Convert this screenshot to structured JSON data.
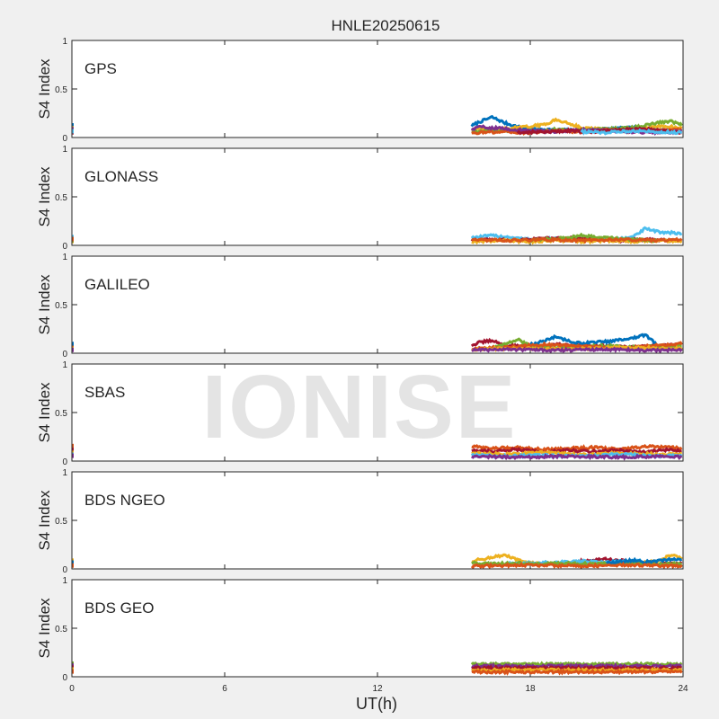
{
  "watermark": "IONISE",
  "chart_data": {
    "type": "scatter",
    "title": "HNLE20250615",
    "xlabel": "UT(h)",
    "ylabel": "S4 Index",
    "xlim": [
      0,
      24
    ],
    "ylim": [
      0,
      1
    ],
    "xticks": [
      "0",
      "6",
      "12",
      "18",
      "24"
    ],
    "yticks": [
      "0",
      "0.5",
      "1"
    ],
    "grid": false,
    "colors": [
      "#0072bd",
      "#d95319",
      "#edb120",
      "#7e2f8e",
      "#77ac30",
      "#4dbeee",
      "#a2142f"
    ],
    "panels": [
      {
        "name": "GPS",
        "data_start_ut": 15.7,
        "data_end_ut": 24,
        "series": [
          {
            "color_index": 0,
            "x": [
              15.7,
              16.0,
              16.5,
              17.0,
              17.5,
              18.0,
              19.0,
              20.0,
              21.0,
              22.0,
              23.0,
              24.0
            ],
            "y": [
              0.12,
              0.16,
              0.21,
              0.15,
              0.11,
              0.09,
              0.08,
              0.07,
              0.09,
              0.1,
              0.08,
              0.07
            ]
          },
          {
            "color_index": 2,
            "x": [
              15.7,
              16.5,
              17.5,
              18.5,
              19.0,
              19.5,
              20.0,
              21.0,
              22.0,
              23.0,
              24.0
            ],
            "y": [
              0.09,
              0.08,
              0.1,
              0.13,
              0.18,
              0.15,
              0.1,
              0.08,
              0.07,
              0.12,
              0.1
            ]
          },
          {
            "color_index": 4,
            "x": [
              15.7,
              17.0,
              18.0,
              19.0,
              20.0,
              21.0,
              22.0,
              23.0,
              23.5,
              24.0
            ],
            "y": [
              0.06,
              0.07,
              0.06,
              0.08,
              0.07,
              0.09,
              0.1,
              0.15,
              0.17,
              0.13
            ]
          },
          {
            "color_index": 1,
            "x": [
              15.7,
              17.0,
              18.0,
              19.0,
              20.0,
              21.0,
              22.0,
              23.0,
              24.0
            ],
            "y": [
              0.05,
              0.06,
              0.05,
              0.07,
              0.06,
              0.08,
              0.06,
              0.07,
              0.08
            ]
          },
          {
            "color_index": 3,
            "x": [
              15.7,
              16.0,
              17.0,
              18.0,
              19.0,
              20.0,
              21.0,
              22.0,
              23.0,
              24.0
            ],
            "y": [
              0.08,
              0.11,
              0.09,
              0.07,
              0.06,
              0.08,
              0.07,
              0.06,
              0.05,
              0.06
            ]
          },
          {
            "color_index": 6,
            "x": [
              17.5,
              18.5,
              19.5,
              20.5,
              21.5,
              22.5,
              23.5,
              24.0
            ],
            "y": [
              0.05,
              0.06,
              0.07,
              0.06,
              0.08,
              0.09,
              0.06,
              0.05
            ]
          },
          {
            "color_index": 5,
            "x": [
              20.0,
              21.0,
              22.0,
              23.0,
              24.0
            ],
            "y": [
              0.06,
              0.05,
              0.07,
              0.06,
              0.05
            ]
          }
        ]
      },
      {
        "name": "GLONASS",
        "data_start_ut": 15.7,
        "data_end_ut": 24,
        "series": [
          {
            "color_index": 5,
            "x": [
              15.7,
              16.5,
              17.0,
              18.0,
              19.0,
              20.0,
              21.0,
              22.0,
              22.5,
              23.0,
              24.0
            ],
            "y": [
              0.08,
              0.1,
              0.09,
              0.06,
              0.07,
              0.05,
              0.06,
              0.08,
              0.17,
              0.14,
              0.12
            ]
          },
          {
            "color_index": 6,
            "x": [
              15.7,
              16.5,
              17.5,
              18.5,
              19.5,
              20.5,
              21.5,
              22.5,
              23.5,
              24.0
            ],
            "y": [
              0.05,
              0.06,
              0.05,
              0.07,
              0.08,
              0.06,
              0.05,
              0.06,
              0.05,
              0.05
            ]
          },
          {
            "color_index": 2,
            "x": [
              15.7,
              17.0,
              18.0,
              19.0,
              20.0,
              21.0,
              22.0,
              23.0,
              24.0
            ],
            "y": [
              0.04,
              0.05,
              0.04,
              0.05,
              0.04,
              0.05,
              0.04,
              0.05,
              0.04
            ]
          },
          {
            "color_index": 4,
            "x": [
              18.0,
              19.0,
              20.0,
              21.0,
              22.0,
              23.0
            ],
            "y": [
              0.05,
              0.07,
              0.1,
              0.08,
              0.06,
              0.05
            ]
          },
          {
            "color_index": 1,
            "x": [
              15.7,
              17.0,
              18.5,
              20.0,
              21.5,
              23.0,
              24.0
            ],
            "y": [
              0.06,
              0.05,
              0.06,
              0.05,
              0.06,
              0.05,
              0.06
            ]
          }
        ]
      },
      {
        "name": "GALILEO",
        "data_start_ut": 15.7,
        "data_end_ut": 24,
        "series": [
          {
            "color_index": 6,
            "x": [
              15.7,
              16.0,
              16.5,
              17.0,
              18.0,
              19.0,
              20.0,
              21.0,
              22.0,
              23.0,
              24.0
            ],
            "y": [
              0.08,
              0.11,
              0.13,
              0.08,
              0.07,
              0.09,
              0.08,
              0.07,
              0.06,
              0.08,
              0.09
            ]
          },
          {
            "color_index": 4,
            "x": [
              16.5,
              17.0,
              17.5,
              18.0,
              19.0,
              20.0,
              21.0,
              22.0,
              23.0,
              24.0
            ],
            "y": [
              0.06,
              0.09,
              0.14,
              0.08,
              0.06,
              0.07,
              0.08,
              0.06,
              0.07,
              0.08
            ]
          },
          {
            "color_index": 0,
            "x": [
              18.0,
              18.5,
              19.0,
              19.5,
              20.0,
              21.0,
              22.0,
              22.5,
              23.0
            ],
            "y": [
              0.09,
              0.12,
              0.17,
              0.13,
              0.1,
              0.12,
              0.15,
              0.19,
              0.08
            ]
          },
          {
            "color_index": 1,
            "x": [
              15.7,
              17.0,
              18.5,
              20.0,
              21.5,
              23.0,
              24.0
            ],
            "y": [
              0.05,
              0.06,
              0.09,
              0.07,
              0.05,
              0.08,
              0.1
            ]
          },
          {
            "color_index": 2,
            "x": [
              15.7,
              17.5,
              19.5,
              21.5,
              23.5,
              24.0
            ],
            "y": [
              0.04,
              0.05,
              0.04,
              0.06,
              0.05,
              0.05
            ]
          },
          {
            "color_index": 3,
            "x": [
              15.7,
              17.0,
              19.0,
              21.0,
              23.0,
              24.0
            ],
            "y": [
              0.03,
              0.04,
              0.03,
              0.04,
              0.03,
              0.04
            ]
          }
        ]
      },
      {
        "name": "SBAS",
        "data_start_ut": 15.7,
        "data_end_ut": 24,
        "series": [
          {
            "color_index": 1,
            "x": [
              15.7,
              16.5,
              17.5,
              18.5,
              19.5,
              20.5,
              21.5,
              22.5,
              23.5,
              24.0
            ],
            "y": [
              0.15,
              0.13,
              0.14,
              0.12,
              0.13,
              0.14,
              0.12,
              0.15,
              0.14,
              0.13
            ]
          },
          {
            "color_index": 6,
            "x": [
              15.7,
              16.5,
              17.5,
              18.5,
              19.5,
              20.5,
              21.5,
              22.5,
              23.5,
              24.0
            ],
            "y": [
              0.11,
              0.1,
              0.12,
              0.09,
              0.11,
              0.1,
              0.11,
              0.09,
              0.12,
              0.1
            ]
          },
          {
            "color_index": 2,
            "x": [
              15.7,
              17.0,
              18.5,
              20.0,
              21.5,
              23.0,
              24.0
            ],
            "y": [
              0.08,
              0.07,
              0.09,
              0.07,
              0.08,
              0.07,
              0.08
            ]
          },
          {
            "color_index": 5,
            "x": [
              15.7,
              17.0,
              18.5,
              20.0,
              21.5,
              23.0,
              24.0
            ],
            "y": [
              0.06,
              0.05,
              0.06,
              0.05,
              0.07,
              0.05,
              0.06
            ]
          },
          {
            "color_index": 3,
            "x": [
              15.7,
              17.5,
              19.5,
              21.5,
              23.5,
              24.0
            ],
            "y": [
              0.05,
              0.04,
              0.05,
              0.04,
              0.05,
              0.04
            ]
          }
        ]
      },
      {
        "name": "BDS NGEO",
        "data_start_ut": 15.7,
        "data_end_ut": 24,
        "series": [
          {
            "color_index": 2,
            "x": [
              15.7,
              16.5,
              17.0,
              17.5,
              18.0,
              19.0,
              20.0,
              21.0,
              22.0,
              23.0,
              23.5,
              24.0
            ],
            "y": [
              0.08,
              0.12,
              0.14,
              0.09,
              0.06,
              0.05,
              0.06,
              0.05,
              0.06,
              0.08,
              0.14,
              0.11
            ]
          },
          {
            "color_index": 6,
            "x": [
              19.5,
              20.0,
              21.0,
              21.5,
              22.0,
              23.0,
              24.0
            ],
            "y": [
              0.05,
              0.08,
              0.1,
              0.09,
              0.07,
              0.05,
              0.06
            ]
          },
          {
            "color_index": 5,
            "x": [
              17.0,
              18.0,
              19.0,
              20.0,
              21.0,
              22.0,
              22.5
            ],
            "y": [
              0.05,
              0.06,
              0.07,
              0.08,
              0.07,
              0.09,
              0.08
            ]
          },
          {
            "color_index": 4,
            "x": [
              15.7,
              16.5,
              17.5,
              18.5,
              19.5,
              20.5,
              21.5,
              23.0,
              24.0
            ],
            "y": [
              0.06,
              0.05,
              0.06,
              0.05,
              0.06,
              0.05,
              0.06,
              0.05,
              0.06
            ]
          },
          {
            "color_index": 0,
            "x": [
              21.0,
              22.0,
              22.5,
              23.5,
              24.0
            ],
            "y": [
              0.06,
              0.09,
              0.07,
              0.1,
              0.09
            ]
          },
          {
            "color_index": 1,
            "x": [
              15.7,
              18.0,
              20.0,
              22.0,
              24.0
            ],
            "y": [
              0.03,
              0.04,
              0.03,
              0.04,
              0.03
            ]
          }
        ]
      },
      {
        "name": "BDS GEO",
        "data_start_ut": 15.7,
        "data_end_ut": 24,
        "series": [
          {
            "color_index": 4,
            "x": [
              15.7,
              24.0
            ],
            "y": [
              0.13,
              0.13
            ]
          },
          {
            "color_index": 3,
            "x": [
              15.7,
              24.0
            ],
            "y": [
              0.11,
              0.11
            ]
          },
          {
            "color_index": 6,
            "x": [
              15.7,
              24.0
            ],
            "y": [
              0.09,
              0.09
            ]
          },
          {
            "color_index": 2,
            "x": [
              15.7,
              24.0
            ],
            "y": [
              0.07,
              0.07
            ]
          },
          {
            "color_index": 1,
            "x": [
              15.7,
              24.0
            ],
            "y": [
              0.05,
              0.05
            ]
          }
        ]
      }
    ]
  }
}
